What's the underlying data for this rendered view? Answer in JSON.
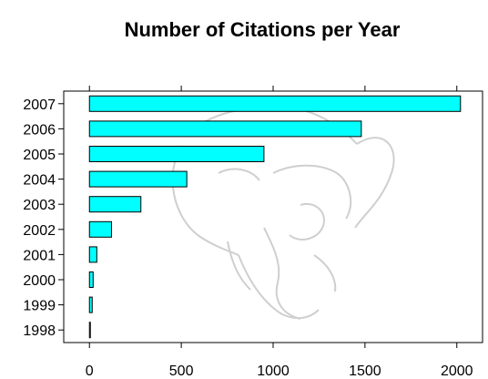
{
  "chart_data": {
    "type": "bar",
    "orientation": "horizontal",
    "title": "Number of Citations per Year",
    "xlabel": "",
    "ylabel": "",
    "categories": [
      "1998",
      "1999",
      "2000",
      "2001",
      "2002",
      "2003",
      "2004",
      "2005",
      "2006",
      "2007"
    ],
    "values": [
      5,
      15,
      20,
      40,
      120,
      280,
      530,
      950,
      1480,
      2020
    ],
    "xlim": [
      -140,
      2140
    ],
    "xticks": [
      "0",
      "500",
      "1000",
      "1500",
      "2000"
    ],
    "grid": false,
    "legend": "none",
    "bar_color": "#00ffff"
  }
}
